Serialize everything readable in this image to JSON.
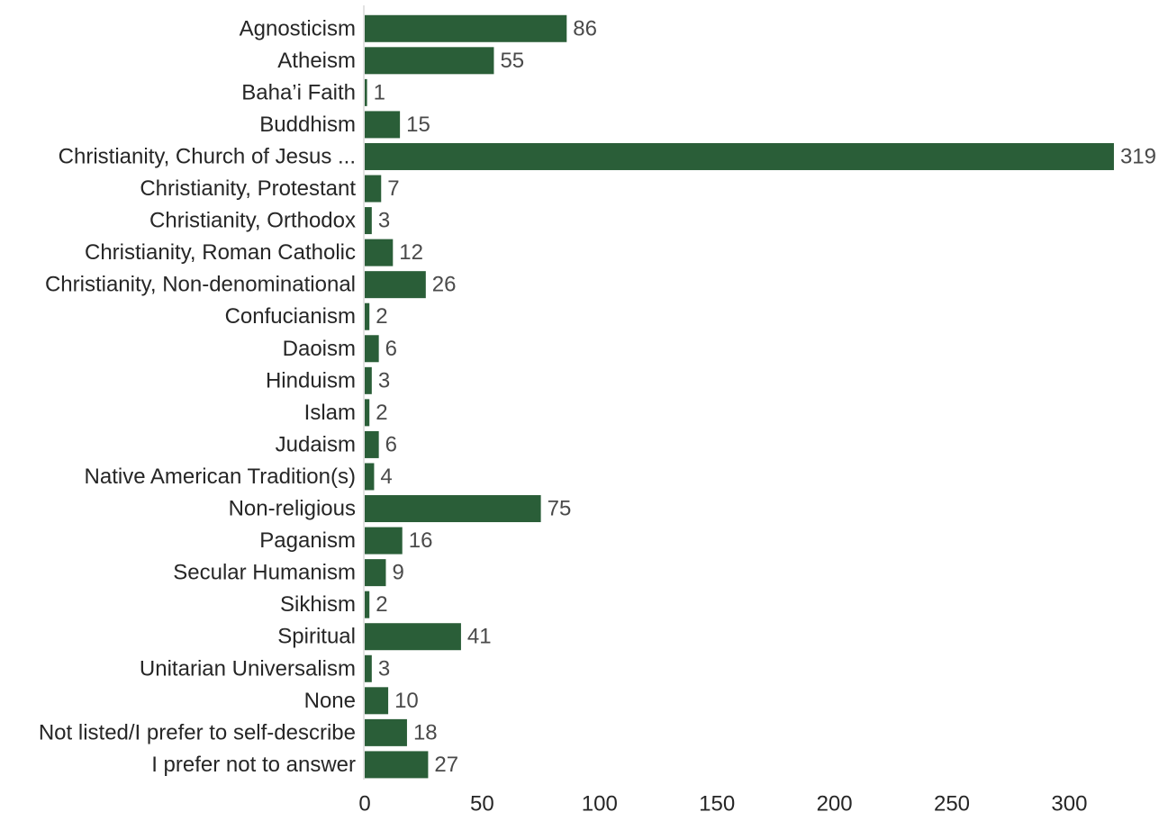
{
  "chart_data": {
    "type": "bar",
    "orientation": "horizontal",
    "title": "",
    "xlabel": "",
    "ylabel": "",
    "categories": [
      "Agnosticism",
      "Atheism",
      "Baha’i Faith",
      "Buddhism",
      "Christianity, Church of Jesus ...",
      "Christianity, Protestant",
      "Christianity, Orthodox",
      "Christianity, Roman Catholic",
      "Christianity, Non-denominational",
      "Confucianism",
      "Daoism",
      "Hinduism",
      "Islam",
      "Judaism",
      "Native American Tradition(s)",
      "Non-religious",
      "Paganism",
      "Secular Humanism",
      "Sikhism",
      "Spiritual",
      "Unitarian Universalism",
      "None",
      "Not listed/I prefer to self-describe",
      "I prefer not to answer"
    ],
    "values": [
      86,
      55,
      1,
      15,
      319,
      7,
      3,
      12,
      26,
      2,
      6,
      3,
      2,
      6,
      4,
      75,
      16,
      9,
      2,
      41,
      3,
      10,
      18,
      27
    ],
    "xticks": [
      0,
      50,
      100,
      150,
      200,
      250,
      300
    ],
    "xlim": [
      0,
      319
    ],
    "grid": false,
    "legend": "none",
    "bar_color": "#2a5e38",
    "axis_color": "#d9d9d9"
  }
}
